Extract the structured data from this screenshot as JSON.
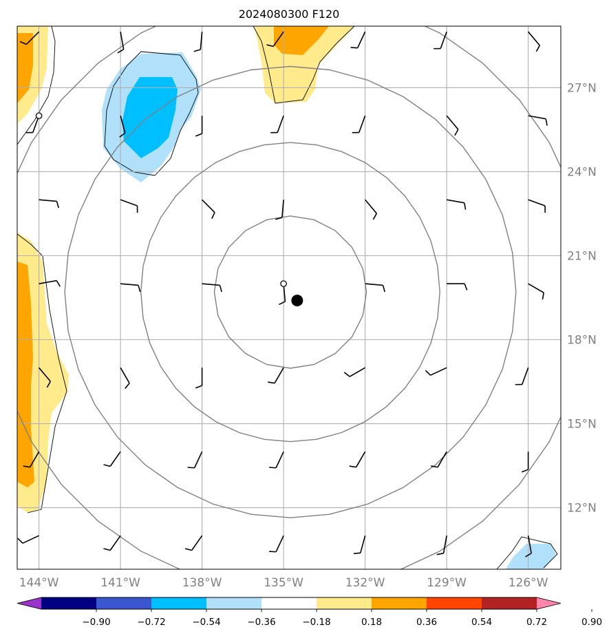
{
  "title": "2024080300 F120",
  "map": {
    "lon_range": [
      -144.8,
      -124.8
    ],
    "lat_range": [
      9.8,
      29.2
    ],
    "lat_ticks": [
      {
        "value": 27,
        "label": "27°N"
      },
      {
        "value": 24,
        "label": "24°N"
      },
      {
        "value": 21,
        "label": "21°N"
      },
      {
        "value": 18,
        "label": "18°N"
      },
      {
        "value": 15,
        "label": "15°N"
      },
      {
        "value": 12,
        "label": "12°N"
      }
    ],
    "lon_ticks": [
      {
        "value": -144,
        "label": "144°W"
      },
      {
        "value": -141,
        "label": "141°W"
      },
      {
        "value": -138,
        "label": "138°W"
      },
      {
        "value": -135,
        "label": "135°W"
      },
      {
        "value": -132,
        "label": "132°W"
      },
      {
        "value": -129,
        "label": "129°W"
      },
      {
        "value": -126,
        "label": "126°W"
      }
    ],
    "grid": true,
    "storm_center": {
      "lon": -134.5,
      "lat": 19.4
    },
    "range_rings_center": {
      "lon": -134.75,
      "lat": 19.7
    },
    "range_ring_radii_deg": [
      2.8,
      5.5,
      8.3,
      11.0
    ],
    "open_circle_markers": [
      {
        "lon": -135.0,
        "lat": 20.0
      },
      {
        "lon": -144.0,
        "lat": 26.0
      }
    ],
    "wind_barb_lons": [
      -144,
      -141,
      -138,
      -135,
      -132,
      -129,
      -126
    ],
    "wind_barb_lats": [
      29,
      26,
      23,
      20,
      17,
      14,
      11
    ],
    "colors": {
      "grid": "#b0b0b0",
      "rings": "#808080"
    }
  },
  "colorbar": {
    "labels": [
      "−0.90",
      "−0.72",
      "−0.54",
      "−0.36",
      "−0.18",
      "0.18",
      "0.36",
      "0.54",
      "0.72",
      "0.90"
    ],
    "colors": [
      "#9933cc",
      "#000080",
      "#3a57cf",
      "#00bfff",
      "#b0e0fa",
      "#ffffff",
      "#ffeb8c",
      "#ffa500",
      "#ff4500",
      "#b22222",
      "#ff85aa"
    ]
  }
}
